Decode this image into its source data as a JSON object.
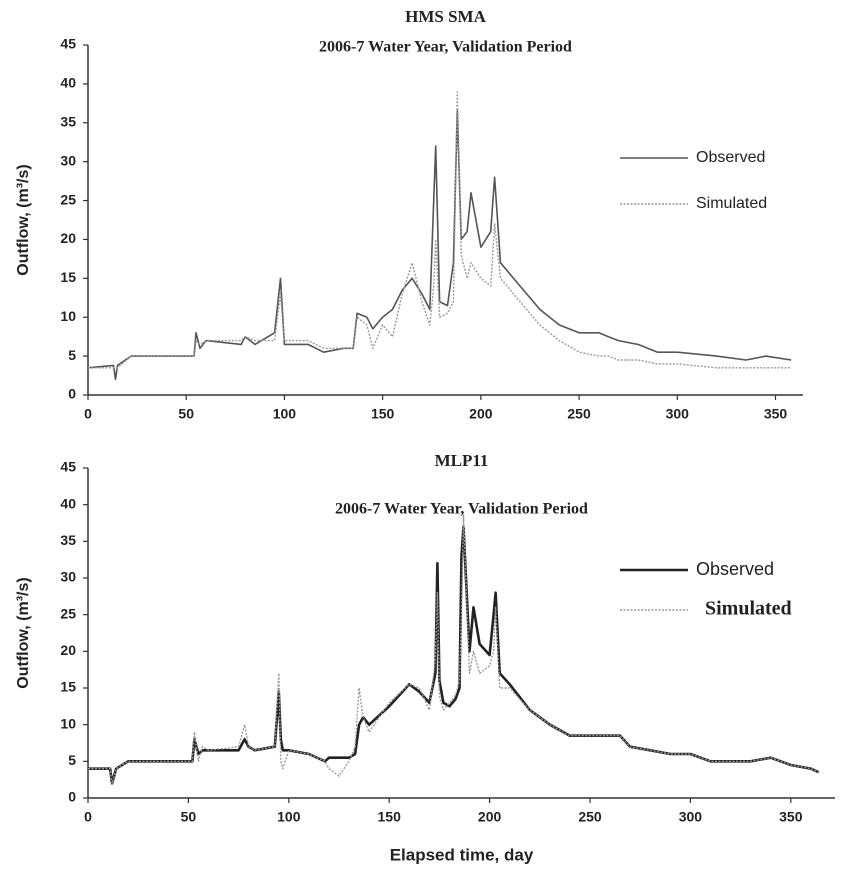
{
  "chart_data": [
    {
      "type": "line",
      "title": "HMS SMA",
      "subtitle": "2006-7 Water Year, Validation Period",
      "ylabel": "Outflow, (m³/s)",
      "legend": "right",
      "xlim": [
        0,
        364
      ],
      "xticks": [
        0,
        50,
        100,
        150,
        200,
        250,
        300,
        350
      ],
      "ylim": [
        0,
        45
      ],
      "yticks": [
        0,
        5,
        10,
        15,
        20,
        25,
        30,
        35,
        40,
        45
      ],
      "x": [
        0,
        13,
        14,
        15,
        22,
        54,
        55,
        57,
        60,
        78,
        80,
        85,
        95,
        98,
        100,
        112,
        120,
        130,
        135,
        137,
        142,
        145,
        150,
        155,
        160,
        165,
        170,
        174,
        176,
        177,
        179,
        183,
        186,
        188,
        190,
        193,
        195,
        200,
        205,
        207,
        210,
        220,
        230,
        240,
        250,
        260,
        265,
        270,
        280,
        290,
        300,
        320,
        335,
        345,
        358
      ],
      "series": [
        {
          "name": "Observed",
          "color": "#555555",
          "values": [
            3.5,
            3.8,
            2,
            3.8,
            5,
            5,
            8,
            6,
            7,
            6.5,
            7.5,
            6.5,
            8,
            15,
            6.5,
            6.5,
            5.5,
            6,
            6,
            10.5,
            10,
            8.5,
            10,
            11,
            13.5,
            15,
            13,
            11,
            25,
            32,
            12,
            11.5,
            17,
            36.5,
            20,
            21,
            26,
            19,
            21,
            28,
            17,
            14,
            11,
            9,
            8,
            8,
            7.5,
            7,
            6.5,
            5.5,
            5.5,
            5,
            4.5,
            5,
            4.5
          ]
        },
        {
          "name": "Simulated",
          "color": "#999999",
          "values": [
            3.5,
            3.5,
            3.5,
            3.5,
            5,
            5,
            7,
            6.5,
            7,
            7,
            7.5,
            7,
            7,
            13,
            7,
            7,
            6,
            6,
            6,
            10,
            9,
            6,
            9,
            7.5,
            13,
            17,
            12,
            9,
            14,
            20,
            10,
            10.5,
            12,
            39,
            18,
            15,
            17,
            15,
            14,
            22,
            15,
            12,
            9,
            7,
            5.5,
            5,
            5,
            4.5,
            4.5,
            4,
            4,
            3.5,
            3.5,
            3.5,
            3.5
          ]
        }
      ]
    },
    {
      "type": "line",
      "title": "MLP11",
      "subtitle": "2006-7 Water Year, Validation Period",
      "ylabel": "Outflow, (m³/s)",
      "xlabel": "Elapsed time, day",
      "legend": "right",
      "xlim": [
        0,
        372
      ],
      "xticks": [
        0,
        50,
        100,
        150,
        200,
        250,
        300,
        350
      ],
      "ylim": [
        0,
        45
      ],
      "yticks": [
        0,
        5,
        10,
        15,
        20,
        25,
        30,
        35,
        40,
        45
      ],
      "x": [
        0,
        11,
        12,
        13,
        14,
        20,
        52,
        53,
        55,
        57,
        60,
        75,
        78,
        80,
        83,
        93,
        95,
        96,
        97,
        100,
        110,
        118,
        120,
        125,
        130,
        133,
        135,
        137,
        140,
        150,
        160,
        165,
        170,
        173,
        174,
        175,
        177,
        180,
        183,
        185,
        186,
        187,
        190,
        192,
        195,
        200,
        202,
        203,
        205,
        210,
        220,
        230,
        240,
        250,
        260,
        265,
        270,
        280,
        290,
        300,
        310,
        320,
        330,
        340,
        350,
        360,
        364
      ],
      "series": [
        {
          "name": "Observed",
          "color": "#222222",
          "values": [
            4,
            4,
            2,
            3,
            4,
            5,
            5,
            8,
            6,
            6.5,
            6.5,
            6.5,
            8,
            7,
            6.5,
            7,
            14.5,
            8,
            6.5,
            6.5,
            6,
            5,
            5.5,
            5.5,
            5.5,
            6,
            10,
            11,
            10,
            12.5,
            15.5,
            14.5,
            13,
            17,
            32,
            16,
            13,
            12.5,
            13.5,
            15,
            33,
            37,
            20,
            26,
            21,
            19.5,
            25,
            28,
            17,
            15.5,
            12,
            10,
            8.5,
            8.5,
            8.5,
            8.5,
            7,
            6.5,
            6,
            6,
            5,
            5,
            5,
            5.5,
            4.5,
            4,
            3.5
          ]
        },
        {
          "name": "Simulated",
          "color": "#999999",
          "values": [
            4,
            4,
            2,
            3,
            4,
            5,
            5,
            9,
            5,
            7,
            6.5,
            7,
            10,
            7,
            6.5,
            7,
            17,
            5,
            4,
            6.5,
            6,
            5,
            4,
            3,
            5,
            7,
            15,
            11,
            9,
            13,
            15.5,
            15,
            12,
            19,
            28,
            14,
            12,
            13,
            14,
            16,
            25,
            38.5,
            17,
            20,
            17,
            18,
            20,
            26,
            15,
            15,
            12,
            10,
            8.5,
            8.5,
            8.5,
            8.5,
            7,
            6.5,
            6,
            6,
            5,
            5,
            5,
            5.5,
            4.5,
            4,
            3.5
          ]
        }
      ]
    }
  ]
}
